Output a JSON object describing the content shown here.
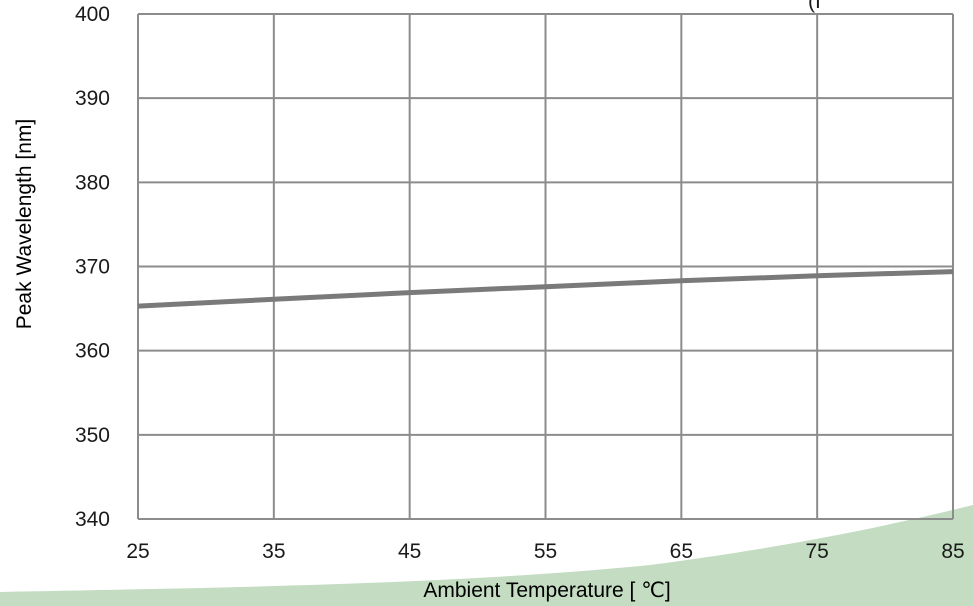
{
  "chart_data": {
    "type": "line",
    "title": "",
    "xlabel": "Ambient Temperature [ ℃]",
    "ylabel": "Peak Wavelength [nm]",
    "xlim": [
      25,
      85
    ],
    "ylim": [
      340,
      400
    ],
    "x_ticks": [
      25,
      35,
      45,
      55,
      65,
      75,
      85
    ],
    "y_ticks": [
      340,
      350,
      360,
      370,
      380,
      390,
      400
    ],
    "x_tick_labels": [
      "25",
      "35",
      "45",
      "55",
      "65",
      "75",
      "85"
    ],
    "y_tick_labels": [
      "340",
      "350",
      "360",
      "370",
      "380",
      "390",
      "400"
    ],
    "grid": true,
    "series": [
      {
        "x": [
          25,
          35,
          45,
          55,
          65,
          75,
          85
        ],
        "y": [
          365.3,
          366.1,
          366.9,
          367.6,
          368.3,
          368.9,
          369.4
        ]
      }
    ],
    "corner_text": "(I"
  },
  "colors": {
    "line": "#7a7a7a",
    "grid": "#8c8c8c",
    "decor_band": "#c3dcc2"
  }
}
